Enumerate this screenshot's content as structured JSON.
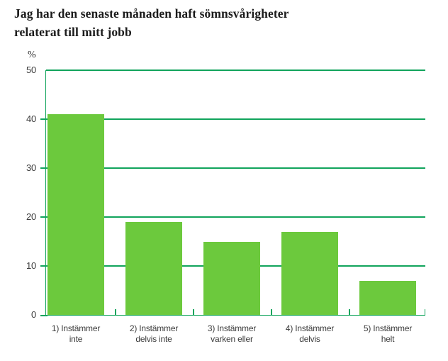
{
  "header": {
    "title_lines": [
      "Jag har den senaste månaden haft sömnsvårigheter",
      "relaterat till mitt jobb"
    ]
  },
  "chart_data": {
    "type": "bar",
    "title": "Jag har den senaste månaden haft sömnsvårigheter relaterat till mitt jobb",
    "unit_label": "%",
    "xlabel": "",
    "ylabel": "%",
    "categories": [
      "1) Instämmer inte",
      "2) Instämmer delvis inte",
      "3) Instämmer varken eller",
      "4) Instämmer delvis",
      "5) Instämmer helt"
    ],
    "category_lines": [
      [
        "1) Instämmer",
        "inte"
      ],
      [
        "2) Instämmer",
        "delvis inte"
      ],
      [
        "3) Instämmer",
        "varken eller"
      ],
      [
        "4) Instämmer",
        "delvis"
      ],
      [
        "5) Instämmer",
        "helt"
      ]
    ],
    "values": [
      41,
      19,
      15,
      17,
      7
    ],
    "ylim": [
      0,
      50
    ],
    "yticks": [
      0,
      10,
      20,
      30,
      40,
      50
    ],
    "grid": true,
    "legend": "none",
    "colors": {
      "bar": "#6cc93d",
      "axis": "#11a45c",
      "title_text": "#1b1b1b",
      "tick_text": "#3c3c3c"
    }
  }
}
